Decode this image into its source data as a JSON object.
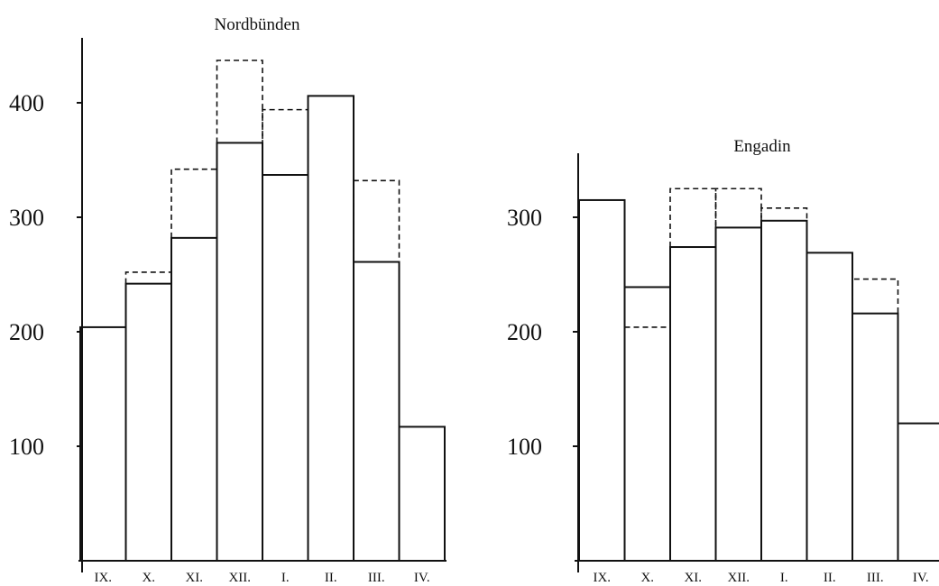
{
  "colors": {
    "ink": "#111111",
    "background": "#ffffff"
  },
  "chart_data": [
    {
      "type": "bar",
      "title": "Nordbünden",
      "xlabel": "",
      "ylabel": "",
      "categories": [
        "IX.",
        "X.",
        "XI.",
        "XII.",
        "I.",
        "II.",
        "III.",
        "IV."
      ],
      "yticks": [
        {
          "label": "100",
          "value": 100
        },
        {
          "label": "200",
          "value": 200
        },
        {
          "label": "300",
          "value": 300
        },
        {
          "label": "400",
          "value": 400
        }
      ],
      "ylim": [
        0,
        460
      ],
      "series": [
        {
          "style": "solid",
          "values": [
            204,
            242,
            282,
            365,
            337,
            406,
            261,
            117
          ]
        },
        {
          "style": "dashed",
          "values": [
            null,
            252,
            342,
            437,
            394,
            null,
            332,
            null
          ]
        }
      ]
    },
    {
      "type": "bar",
      "title": "Engadin",
      "xlabel": "",
      "ylabel": "",
      "categories": [
        "IX.",
        "X.",
        "XI.",
        "XII.",
        "I.",
        "II.",
        "III.",
        "IV."
      ],
      "yticks": [
        {
          "label": "100",
          "value": 100
        },
        {
          "label": "200",
          "value": 200
        },
        {
          "label": "300",
          "value": 300
        }
      ],
      "ylim": [
        0,
        360
      ],
      "series": [
        {
          "style": "solid",
          "values": [
            315,
            239,
            274,
            291,
            297,
            269,
            216,
            120
          ]
        },
        {
          "style": "dashed",
          "values": [
            null,
            204,
            325,
            325,
            308,
            null,
            246,
            null
          ]
        }
      ]
    }
  ]
}
